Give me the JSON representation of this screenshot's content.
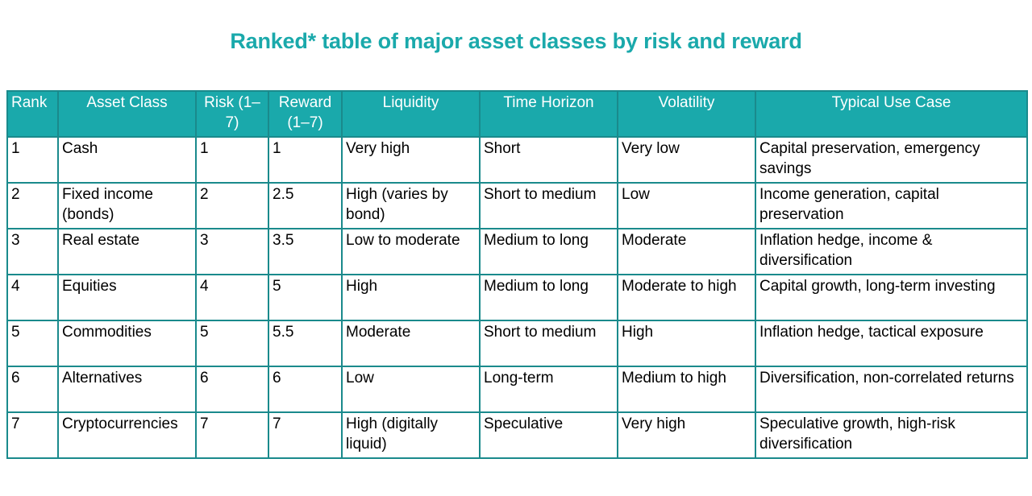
{
  "title": "Ranked* table of major asset classes by risk and reward",
  "colors": {
    "header_bg": "#1aa9ab",
    "border": "#1a8a8c",
    "title": "#1aa9ab"
  },
  "columns": [
    "Rank",
    "Asset Class",
    "Risk (1–7)",
    "Reward (1–7)",
    "Liquidity",
    "Time Horizon",
    "Volatility",
    "Typical Use Case"
  ],
  "rows": [
    [
      "1",
      "Cash",
      "1",
      "1",
      "Very high",
      "Short",
      "Very low",
      "Capital preservation, emergency savings"
    ],
    [
      "2",
      "Fixed income (bonds)",
      "2",
      "2.5",
      "High (varies by bond)",
      "Short to medium",
      "Low",
      "Income generation, capital preservation"
    ],
    [
      "3",
      "Real estate",
      "3",
      "3.5",
      "Low to moderate",
      "Medium to long",
      "Moderate",
      "Inflation hedge, income & diversification"
    ],
    [
      "4",
      "Equities",
      "4",
      "5",
      "High",
      "Medium to long",
      "Moderate to high",
      "Capital growth, long-term investing"
    ],
    [
      "5",
      "Commodities",
      "5",
      "5.5",
      "Moderate",
      "Short to medium",
      "High",
      "Inflation hedge, tactical exposure"
    ],
    [
      "6",
      "Alternatives",
      "6",
      "6",
      "Low",
      "Long-term",
      "Medium to high",
      "Diversification, non-correlated returns"
    ],
    [
      "7",
      "Cryptocurrencies",
      "7",
      "7",
      "High (digitally liquid)",
      "Speculative",
      "Very high",
      "Speculative growth, high-risk diversification"
    ]
  ]
}
